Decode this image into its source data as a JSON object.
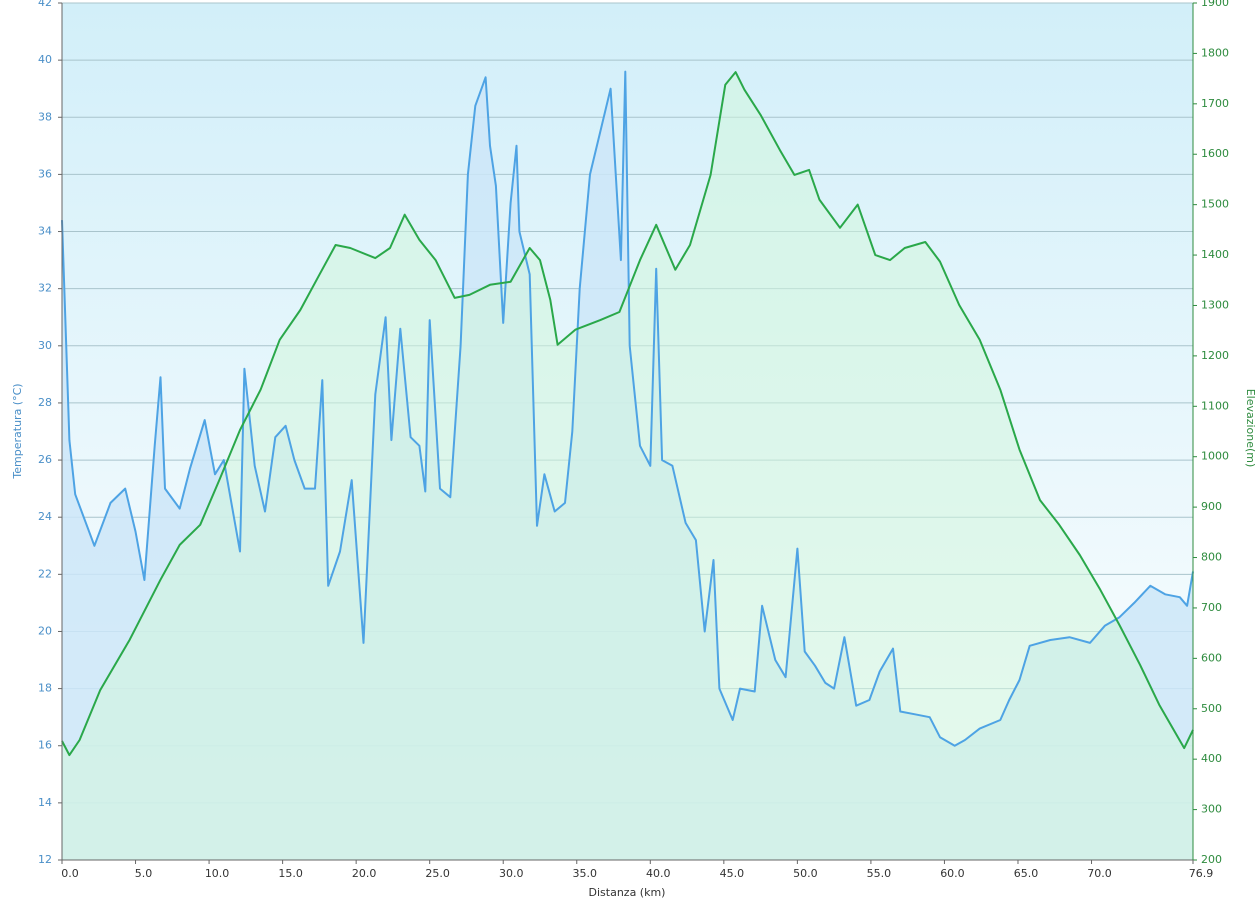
{
  "chart_data": {
    "type": "line",
    "x_label": "Distanza  (km)",
    "y_label": "Temperatura (°C)",
    "y2_label": "Elevazione(m)",
    "xlim": [
      0,
      76.9
    ],
    "xticks": [
      {
        "value": 0,
        "label": "0.0"
      },
      {
        "value": 5,
        "label": "5.0"
      },
      {
        "value": 10,
        "label": "10.0"
      },
      {
        "value": 15,
        "label": "15.0"
      },
      {
        "value": 20,
        "label": "20.0"
      },
      {
        "value": 25,
        "label": "25.0"
      },
      {
        "value": 30,
        "label": "30.0"
      },
      {
        "value": 35,
        "label": "35.0"
      },
      {
        "value": 40,
        "label": "40.0"
      },
      {
        "value": 45,
        "label": "45.0"
      },
      {
        "value": 50,
        "label": "50.0"
      },
      {
        "value": 55,
        "label": "55.0"
      },
      {
        "value": 60,
        "label": "60.0"
      },
      {
        "value": 65,
        "label": "65.0"
      },
      {
        "value": 70,
        "label": "70.0"
      },
      76.9
    ],
    "ylim": [
      12,
      42
    ],
    "yticks": [
      12,
      14,
      16,
      18,
      20,
      22,
      24,
      26,
      28,
      30,
      32,
      34,
      36,
      38,
      40,
      42
    ],
    "y2lim": [
      200,
      1900
    ],
    "y2ticks": [
      200,
      300,
      400,
      500,
      600,
      700,
      800,
      900,
      1000,
      1100,
      1200,
      1300,
      1400,
      1500,
      1600,
      1700,
      1800,
      1900
    ],
    "grid": true,
    "series": [
      {
        "color": "#4ea3e4",
        "fill": "#cde6f8",
        "x": [
          0,
          0.5,
          0.9,
          2.2,
          3.3,
          4.3,
          5,
          5.6,
          6.3,
          6.7,
          7,
          8,
          8.7,
          9.7,
          10.4,
          11,
          12.1,
          12.4,
          13.1,
          13.8,
          14.5,
          15.2,
          15.8,
          16.5,
          17.2,
          17.7,
          18.1,
          18.9,
          19.7,
          20.5,
          21.3,
          22,
          22.4,
          23,
          23.7,
          24.3,
          24.7,
          25,
          25.7,
          26.4,
          27.1,
          27.6,
          28.1,
          28.8,
          29.1,
          29.5,
          30,
          30.5,
          30.9,
          31.1,
          31.8,
          32.3,
          32.8,
          33.5,
          34.2,
          34.7,
          35.2,
          35.9,
          36.6,
          37.3,
          38,
          38.3,
          38.6,
          39.3,
          40,
          40.4,
          40.8,
          41.5,
          42.4,
          43.1,
          43.7,
          44.3,
          44.7,
          45.6,
          46.1,
          47.1,
          47.6,
          48.5,
          49.2,
          50,
          50.5,
          51.2,
          51.9,
          52.5,
          53.2,
          54,
          54.9,
          55.6,
          56.5,
          57,
          58,
          59,
          59.7,
          60.7,
          61.4,
          62.4,
          63.8,
          64.4,
          65.1,
          65.8,
          67.2,
          68.5,
          69.9,
          70.9,
          71.9,
          72.9,
          74,
          75,
          76,
          76.5,
          76.9
        ],
        "values": [
          34.4,
          26.7,
          24.8,
          23,
          24.5,
          25,
          23.5,
          21.8,
          26.5,
          28.9,
          25,
          24.3,
          25.7,
          27.4,
          25.5,
          26,
          22.8,
          29.2,
          25.8,
          24.2,
          26.8,
          27.2,
          26,
          25,
          25,
          28.8,
          21.6,
          22.8,
          25.3,
          19.6,
          28.3,
          31,
          26.7,
          30.6,
          26.8,
          26.5,
          24.9,
          30.9,
          25,
          24.7,
          30,
          36,
          38.4,
          39.4,
          37,
          35.6,
          30.8,
          35,
          37,
          34,
          32.5,
          23.7,
          25.5,
          24.2,
          24.5,
          27,
          32,
          36,
          37.5,
          39,
          33,
          39.6,
          30,
          26.5,
          25.8,
          32.7,
          26,
          25.8,
          23.8,
          23.2,
          20,
          22.5,
          18,
          16.9,
          18,
          17.9,
          20.9,
          19,
          18.4,
          22.9,
          19.3,
          18.8,
          18.2,
          18,
          19.8,
          17.4,
          17.6,
          18.6,
          19.4,
          17.2,
          17.1,
          17,
          16.3,
          16,
          16.2,
          16.6,
          16.9,
          17.6,
          18.3,
          19.5,
          19.7,
          19.8,
          19.6,
          20.2,
          20.5,
          21,
          21.6,
          21.3,
          21.2,
          20.9,
          22.1
        ]
      },
      {
        "color": "#2aa84a",
        "fill": "#d2f5dc",
        "axis": "y2",
        "x": [
          0,
          0.5,
          1.2,
          2.6,
          4.6,
          6.7,
          8,
          9.4,
          10.7,
          12.1,
          13.5,
          14.8,
          16.2,
          17.5,
          18.6,
          19.6,
          21.3,
          22.3,
          23.3,
          24.3,
          25.4,
          26.7,
          27.7,
          29.1,
          30.5,
          31.8,
          32.5,
          33.2,
          33.7,
          34.9,
          36.6,
          37.9,
          39.3,
          40.4,
          41.7,
          42.7,
          44.1,
          45.1,
          45.8,
          46.4,
          47.5,
          48.8,
          49.8,
          50.8,
          51.5,
          52.9,
          54.1,
          55.3,
          56.3,
          57.3,
          58.7,
          59.7,
          61,
          62.4,
          63.8,
          65.1,
          66.5,
          67.8,
          69.2,
          70.6,
          71.9,
          73.3,
          74.6,
          76.3,
          76.9
        ],
        "values": [
          436,
          408,
          438,
          537,
          637,
          756,
          825,
          865,
          954,
          1053,
          1133,
          1232,
          1291,
          1361,
          1420,
          1414,
          1394,
          1414,
          1480,
          1430,
          1390,
          1315,
          1321,
          1341,
          1347,
          1414,
          1390,
          1311,
          1222,
          1252,
          1271,
          1287,
          1390,
          1460,
          1371,
          1420,
          1559,
          1738,
          1763,
          1728,
          1678,
          1609,
          1559,
          1569,
          1510,
          1454,
          1500,
          1400,
          1390,
          1414,
          1426,
          1387,
          1301,
          1232,
          1133,
          1014,
          914,
          865,
          805,
          736,
          666,
          587,
          508,
          422,
          458
        ]
      }
    ]
  }
}
